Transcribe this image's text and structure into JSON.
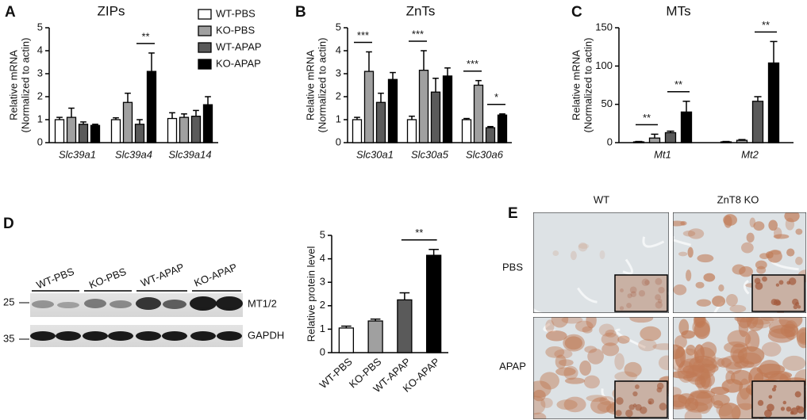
{
  "chart_data": [
    {
      "type": "bar",
      "panel": "A",
      "title": "ZIPs",
      "ylabel": [
        "Relative mRNA",
        "(Normalized to actin)"
      ],
      "categories": [
        "Slc39a1",
        "Slc39a4",
        "Slc39a14"
      ],
      "series": [
        {
          "name": "WT-PBS",
          "color": "#ffffff",
          "values": [
            1.0,
            1.0,
            1.05
          ],
          "errors": [
            0.1,
            0.08,
            0.25
          ]
        },
        {
          "name": "KO-PBS",
          "color": "#a0a0a0",
          "values": [
            1.1,
            1.75,
            1.1
          ],
          "errors": [
            0.4,
            0.4,
            0.15
          ]
        },
        {
          "name": "WT-APAP",
          "color": "#5a5a5a",
          "values": [
            0.8,
            0.8,
            1.15
          ],
          "errors": [
            0.1,
            0.2,
            0.25
          ]
        },
        {
          "name": "KO-APAP",
          "color": "#000000",
          "values": [
            0.75,
            3.1,
            1.65
          ],
          "errors": [
            0.05,
            0.8,
            0.35
          ]
        }
      ],
      "ylim": [
        0,
        5
      ],
      "yticks": [
        0,
        1,
        2,
        3,
        4,
        5
      ],
      "annotations": [
        "**"
      ]
    },
    {
      "type": "bar",
      "panel": "B",
      "title": "ZnTs",
      "ylabel": [
        "Relative mRNA",
        "(Normalized to actin)"
      ],
      "categories": [
        "Slc30a1",
        "Slc30a5",
        "Slc30a6"
      ],
      "series": [
        {
          "color": "#ffffff",
          "values": [
            1.0,
            1.0,
            1.0
          ],
          "errors": [
            0.1,
            0.15,
            0.05
          ]
        },
        {
          "color": "#a0a0a0",
          "values": [
            3.1,
            3.15,
            2.5
          ],
          "errors": [
            0.85,
            0.85,
            0.2
          ]
        },
        {
          "color": "#5a5a5a",
          "values": [
            1.75,
            2.2,
            0.65
          ],
          "errors": [
            0.4,
            0.6,
            0.05
          ]
        },
        {
          "color": "#000000",
          "values": [
            2.75,
            2.9,
            1.2
          ],
          "errors": [
            0.3,
            0.35,
            0.05
          ]
        }
      ],
      "ylim": [
        0,
        5
      ],
      "yticks": [
        0,
        1,
        2,
        3,
        4,
        5
      ],
      "annotations": [
        "***",
        "***",
        "***",
        "*"
      ]
    },
    {
      "type": "bar",
      "panel": "C",
      "title": "MTs",
      "ylabel": [
        "Relative mRNA",
        "(Normalized to actin)"
      ],
      "categories": [
        "Mt1",
        "Mt2"
      ],
      "series": [
        {
          "color": "#ffffff",
          "values": [
            1,
            1
          ],
          "errors": [
            0.5,
            0.5
          ]
        },
        {
          "color": "#a0a0a0",
          "values": [
            6,
            3
          ],
          "errors": [
            5,
            1
          ]
        },
        {
          "color": "#5a5a5a",
          "values": [
            13,
            54
          ],
          "errors": [
            2,
            6
          ]
        },
        {
          "color": "#000000",
          "values": [
            40,
            104
          ],
          "errors": [
            14,
            28
          ]
        }
      ],
      "ylim": [
        0,
        150
      ],
      "yticks": [
        0,
        50,
        100,
        150
      ],
      "annotations": [
        "**",
        "**",
        "**"
      ]
    },
    {
      "type": "bar",
      "panel": "D",
      "ylabel": [
        "Relative protein level"
      ],
      "categories": [
        "WT-PBS",
        "KO-PBS",
        "WT-APAP",
        "KO-APAP"
      ],
      "values": [
        1.05,
        1.35,
        2.25,
        4.15
      ],
      "errors": [
        0.08,
        0.08,
        0.3,
        0.25
      ],
      "colors": [
        "#ffffff",
        "#a0a0a0",
        "#5a5a5a",
        "#000000"
      ],
      "ylim": [
        0,
        5
      ],
      "yticks": [
        0,
        1,
        2,
        3,
        4,
        5
      ],
      "annotations": [
        "**"
      ]
    }
  ],
  "blot": {
    "lanes": [
      "WT-PBS",
      "KO-PBS",
      "WT-APAP",
      "KO-APAP"
    ],
    "markers": [
      25,
      35
    ],
    "bands": [
      "MT1/2",
      "GAPDH"
    ]
  },
  "histology": {
    "panel": "E",
    "columns": [
      "WT",
      "ZnT8 KO"
    ],
    "rows": [
      "PBS",
      "APAP"
    ]
  }
}
